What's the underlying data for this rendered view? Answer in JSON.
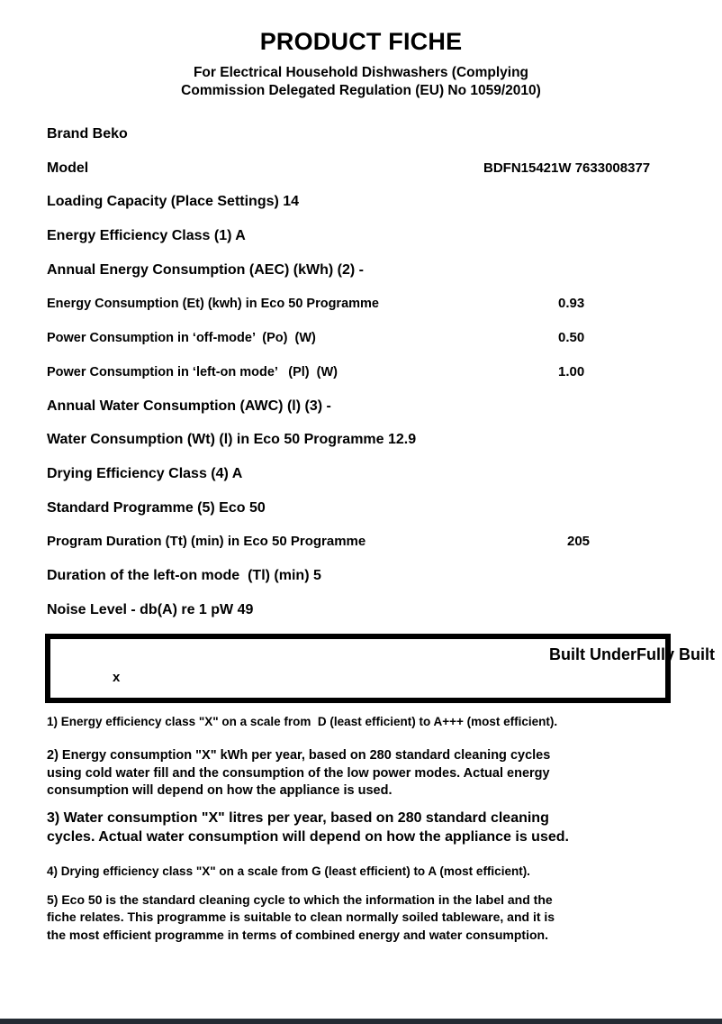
{
  "header": {
    "title": "PRODUCT FICHE",
    "subtitle": "For Electrical Household Dishwashers (Complying\nCommission Delegated Regulation (EU) No 1059/2010)"
  },
  "specs": [
    {
      "label": "Brand Beko",
      "value": ""
    },
    {
      "label": "Model",
      "value": "BDFN15421W 7633008377"
    },
    {
      "label": "Loading Capacity (Place Settings) 14",
      "value": ""
    },
    {
      "label": "Energy Efficiency Class (1) A",
      "value": ""
    },
    {
      "label": "Annual Energy Consumption (AEC) (kWh) (2) -",
      "value": ""
    },
    {
      "label": "Energy Consumption (Et) (kwh) in Eco 50 Programme",
      "value": "0.93"
    },
    {
      "label": "Power Consumption in ‘off-mode’  (Po)  (W)",
      "value": "0.50"
    },
    {
      "label": "Power Consumption in ‘left-on mode’   (Pl)  (W)",
      "value": "1.00"
    },
    {
      "label": "Annual Water Consumption (AWC) (l) (3) -",
      "value": ""
    },
    {
      "label": "Water Consumption (Wt) (l) in Eco 50 Programme 12.9",
      "value": ""
    },
    {
      "label": "Drying Efficiency Class (4) A",
      "value": ""
    },
    {
      "label": "Standard Programme (5) Eco 50",
      "value": ""
    },
    {
      "label": "Program Duration (Tt) (min) in Eco 50 Programme",
      "value": "205"
    },
    {
      "label": "Duration of the left-on mode  (Tl) (min) 5",
      "value": ""
    },
    {
      "label": "Noise Level - db(A) re 1 pW 49",
      "value": ""
    }
  ],
  "installation_box": {
    "right_text": "Built UnderFully Built",
    "mark": "x"
  },
  "footnotes": [
    {
      "text": "1) Energy efficiency class \"X\" on a scale from  D (least efficient) to A+++ (most efficient)."
    },
    {
      "text": "2) Energy consumption \"X\" kWh per year, based on 280 standard cleaning cycles\nusing cold water fill and the consumption of the low power modes. Actual energy\nconsumption will depend on how the appliance is used."
    },
    {
      "text": "3) Water consumption \"X\" litres per year, based on 280 standard cleaning\ncycles. Actual water consumption will depend on how the appliance is used."
    },
    {
      "text": "4) Drying efficiency class \"X\" on a scale from G (least efficient) to A (most efficient)."
    },
    {
      "text": "5) Eco 50 is the standard cleaning cycle to which the information in the label and the\nfiche relates. This programme is suitable to clean normally soiled tableware, and it is\nthe most efficient programme in terms of combined energy and water consumption."
    }
  ],
  "colors": {
    "text": "#000000",
    "bottom_bar": "#242b33",
    "background": "#ffffff"
  }
}
